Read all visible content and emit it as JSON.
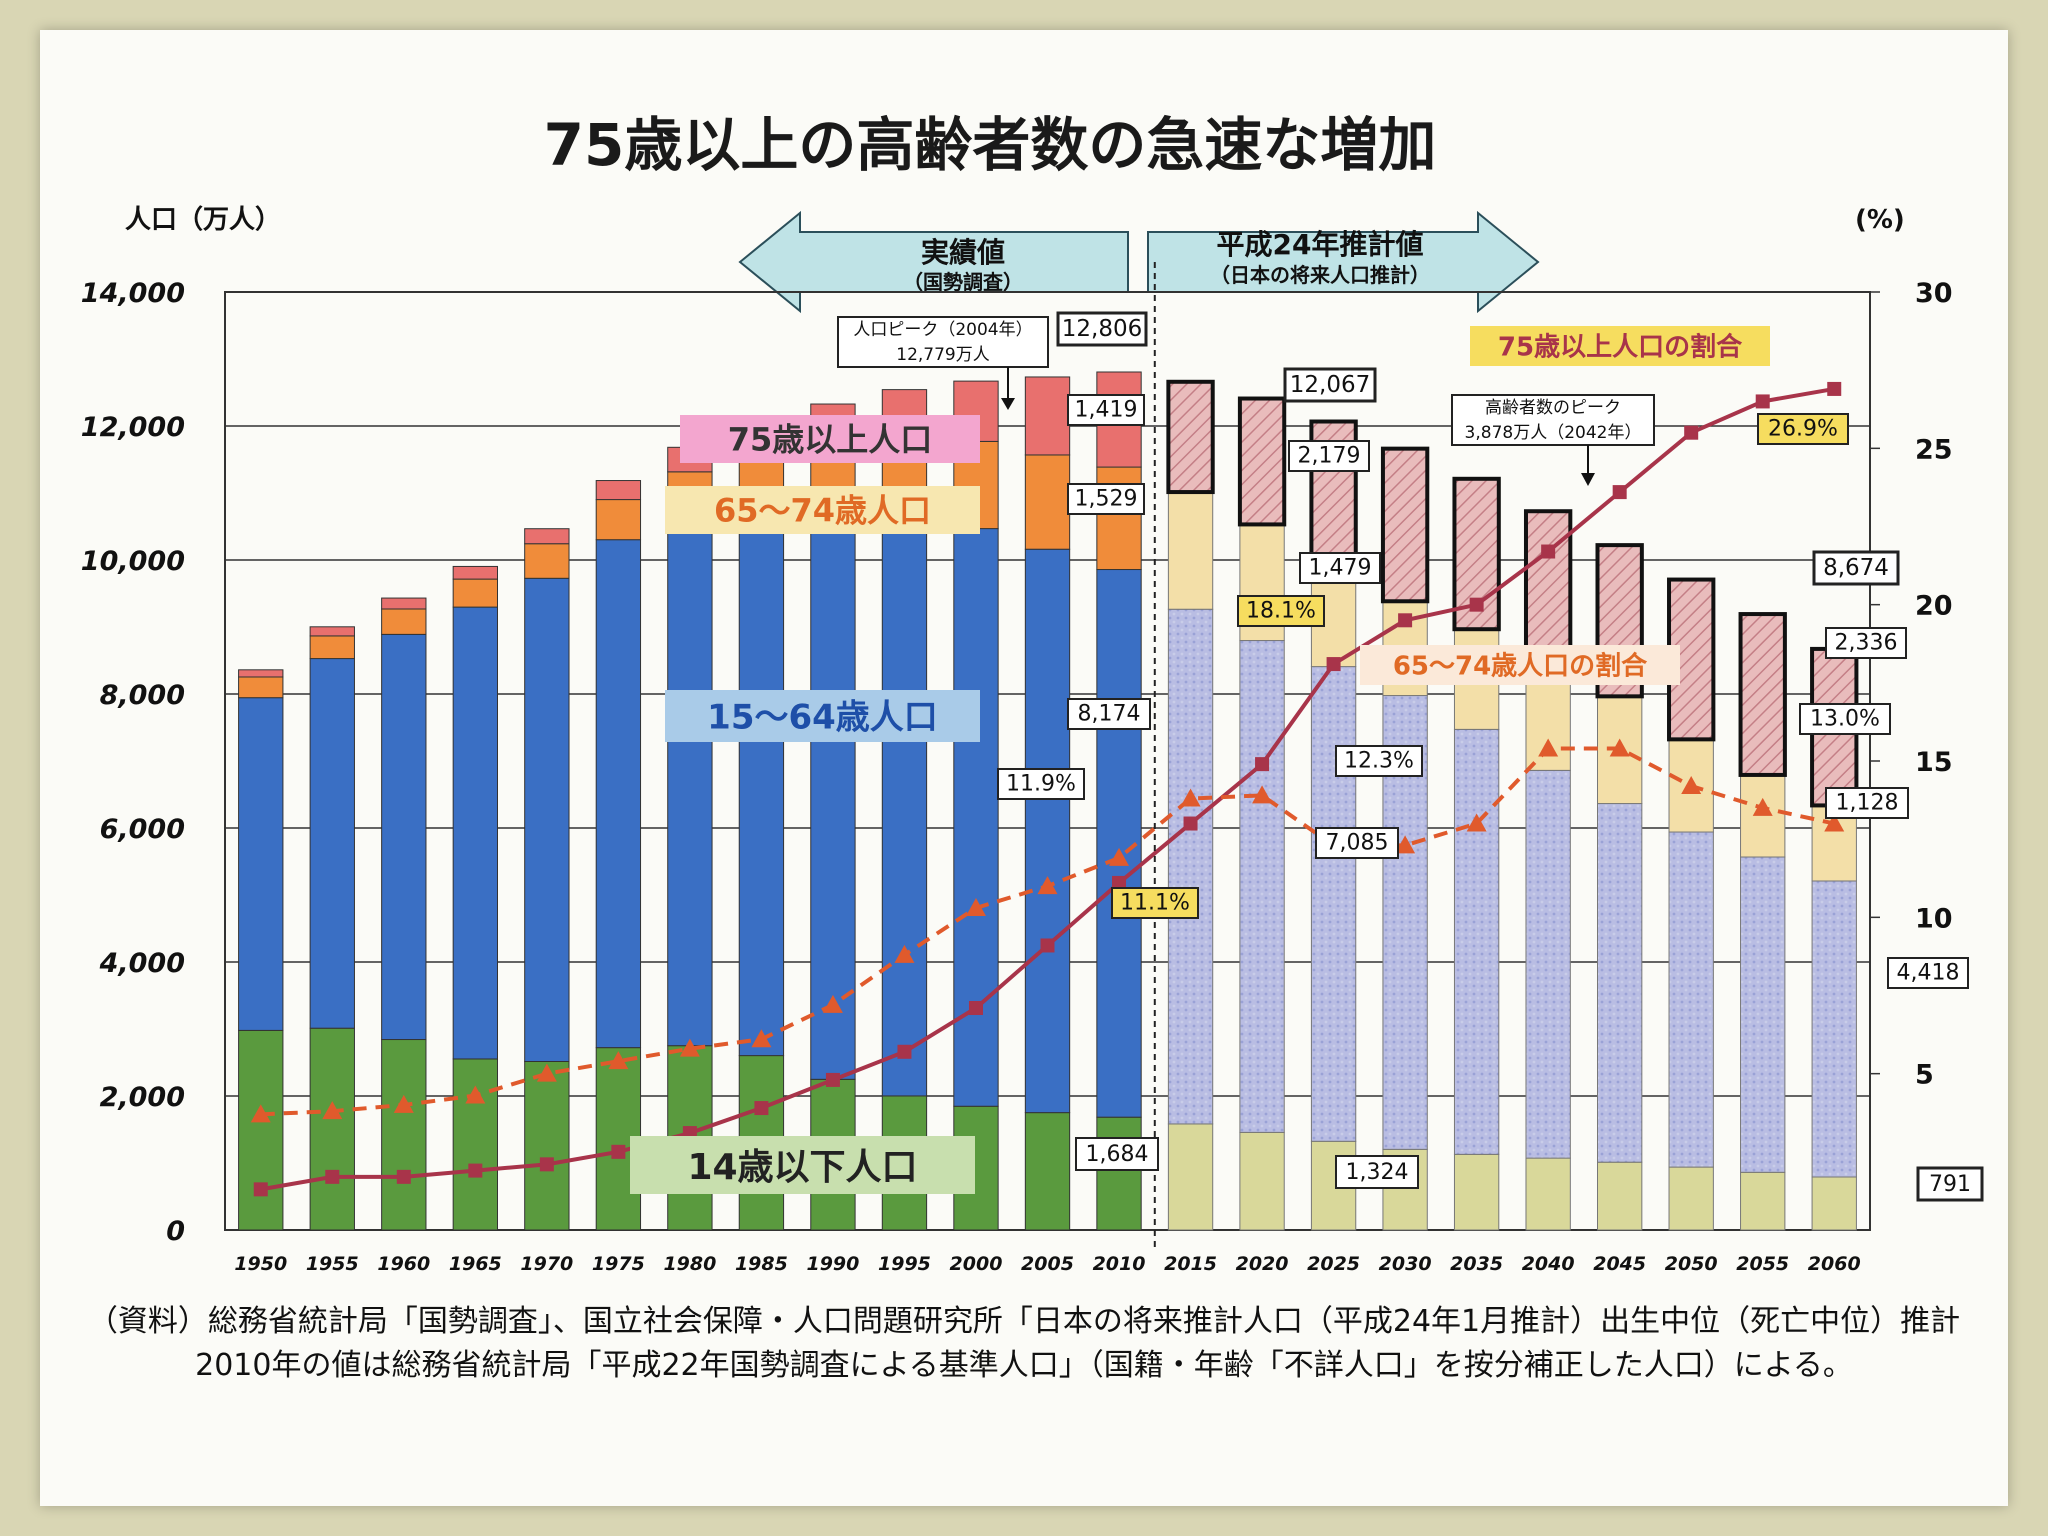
{
  "chart_data": {
    "type": "bar",
    "stacked": true,
    "title": "75歳以上の高齢者数の急速な増加",
    "ylabel_left": "人口（万人）",
    "ylabel_right": "(%)",
    "ylim_left": [
      0,
      14000
    ],
    "ylim_right": [
      0,
      30
    ],
    "yticks_left": [
      "0",
      "2,000",
      "4,000",
      "6,000",
      "8,000",
      "10,000",
      "12,000",
      "14,000"
    ],
    "yticks_right": [
      "5",
      "10",
      "15",
      "20",
      "25",
      "30"
    ],
    "categories": [
      "1950",
      "1955",
      "1960",
      "1965",
      "1970",
      "1975",
      "1980",
      "1985",
      "1990",
      "1995",
      "2000",
      "2005",
      "2010",
      "2015",
      "2020",
      "2025",
      "2030",
      "2035",
      "2040",
      "2045",
      "2050",
      "2055",
      "2060"
    ],
    "projection_start_index": 13,
    "period_labels": {
      "actual_title": "実績値",
      "actual_sub": "（国勢調査）",
      "projected_title": "平成24年推計値",
      "projected_sub": "（日本の将来人口推計）"
    },
    "series": [
      {
        "name": "14歳以下人口",
        "color": "#5a9a3e",
        "proj_color": "#d9d89a",
        "values": [
          2979,
          3012,
          2843,
          2553,
          2515,
          2722,
          2751,
          2603,
          2249,
          2001,
          1847,
          1752,
          1684,
          1583,
          1457,
          1324,
          1204,
          1129,
          1073,
          1012,
          939,
          861,
          791
        ]
      },
      {
        "name": "15〜64歳人口",
        "color": "#3a6fc4",
        "proj_color": "#b3b8df",
        "values": [
          4966,
          5517,
          6047,
          6744,
          7212,
          7581,
          7883,
          8251,
          8590,
          8716,
          8622,
          8409,
          8174,
          7682,
          7341,
          7085,
          6773,
          6343,
          5787,
          5353,
          5001,
          4706,
          4418
        ]
      },
      {
        "name": "65〜74歳人口",
        "color": "#f08c3a",
        "proj_color": "#f3dfa8",
        "values": [
          309,
          338,
          379,
          418,
          516,
          599,
          682,
          739,
          892,
          1109,
          1301,
          1407,
          1529,
          1749,
          1733,
          1479,
          1407,
          1495,
          1645,
          1600,
          1383,
          1225,
          1128
        ]
      },
      {
        "name": "75歳以上人口",
        "color": "#e8706e",
        "proj_color": "#e7b5b5",
        "values": [
          107,
          136,
          163,
          189,
          224,
          284,
          366,
          471,
          597,
          717,
          900,
          1164,
          1419,
          1646,
          1879,
          2179,
          2278,
          2245,
          2223,
          2257,
          2385,
          2401,
          2336
        ]
      }
    ],
    "ratio_series": [
      {
        "name": "75歳以上人口の割合",
        "color": "#a8344a",
        "style": "solid",
        "marker": "square",
        "values": [
          1.3,
          1.7,
          1.7,
          1.9,
          2.1,
          2.5,
          3.1,
          3.9,
          4.8,
          5.7,
          7.1,
          9.1,
          11.1,
          13.0,
          14.9,
          18.1,
          19.5,
          20.0,
          21.7,
          23.6,
          25.5,
          26.5,
          26.9
        ]
      },
      {
        "name": "65〜74歳人口の割合",
        "color": "#e05a2c",
        "style": "dashed",
        "marker": "triangle",
        "values": [
          3.7,
          3.8,
          4.0,
          4.3,
          5.0,
          5.4,
          5.8,
          6.1,
          7.2,
          8.8,
          10.3,
          11.0,
          11.9,
          13.8,
          13.9,
          12.3,
          12.3,
          13.0,
          15.4,
          15.4,
          14.2,
          13.5,
          13.0
        ]
      }
    ],
    "data_labels": {
      "peak_2004": "人口ピーク（2004年）\n12,779万人",
      "total_2010": "12,806",
      "age75_2010": "1,419",
      "age65_2010": "1,529",
      "age15_2010": "8,174",
      "age0_2010": "1,684",
      "pct75_2010": "11.1%",
      "pct65_2010": "11.9%",
      "total_2020": "12,067",
      "age75_2025": "2,179",
      "age65_2025": "1,479",
      "pct75_2025": "18.1%",
      "pct65_2025": "12.3%",
      "age15_2025": "7,085",
      "age0_2025": "1,324",
      "elderly_peak": "高齢者数のピーク\n3,878万人（2042年）",
      "total_2060": "8,674",
      "age75_2060": "2,336",
      "pct65_2060": "13.0%",
      "age65_2060": "1,128",
      "age15_2060": "4,418",
      "age0_2060": "791",
      "pct75_2060": "26.9%"
    },
    "legend_labels": {
      "age75": "75歳以上人口",
      "age65": "65〜74歳人口",
      "age15": "15〜64歳人口",
      "age0": "14歳以下人口",
      "ratio75": "75歳以上人口の割合",
      "ratio65": "65〜74歳人口の割合"
    },
    "source_note_1": "（資料）総務省統計局「国勢調査」、国立社会保障・人口問題研究所「日本の将来推計人口（平成24年1月推計）出生中位（死亡中位）推計",
    "source_note_2": "2010年の値は総務省統計局「平成22年国勢調査による基準人口」（国籍・年齢「不詳人口」を按分補正した人口）による。"
  }
}
